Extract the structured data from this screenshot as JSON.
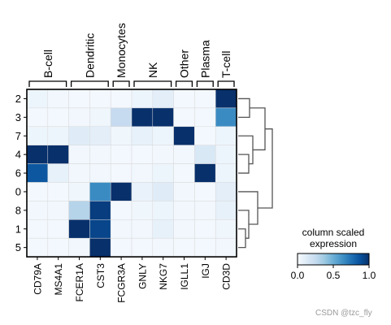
{
  "chart_data": {
    "type": "heatmap",
    "rows": [
      "2",
      "3",
      "7",
      "4",
      "6",
      "0",
      "8",
      "1",
      "5"
    ],
    "columns": [
      "CD79A",
      "MS4A1",
      "FCER1A",
      "CST3",
      "FCGR3A",
      "GNLY",
      "NKG7",
      "IGLL1",
      "IGJ",
      "CD3D"
    ],
    "values": [
      [
        0.05,
        0.03,
        0.02,
        0.02,
        0.02,
        0.05,
        0.1,
        0.02,
        0.02,
        1.0
      ],
      [
        0.02,
        0.02,
        0.03,
        0.04,
        0.25,
        1.0,
        1.0,
        0.02,
        0.02,
        0.65
      ],
      [
        0.05,
        0.05,
        0.12,
        0.1,
        0.04,
        0.08,
        0.05,
        1.0,
        0.02,
        0.05
      ],
      [
        1.0,
        1.0,
        0.03,
        0.03,
        0.02,
        0.02,
        0.03,
        0.03,
        0.15,
        0.05
      ],
      [
        0.85,
        0.08,
        0.03,
        0.03,
        0.02,
        0.03,
        0.05,
        0.02,
        1.0,
        0.05
      ],
      [
        0.02,
        0.02,
        0.04,
        0.65,
        1.0,
        0.07,
        0.12,
        0.03,
        0.02,
        0.1
      ],
      [
        0.03,
        0.03,
        0.3,
        0.95,
        0.02,
        0.04,
        0.05,
        0.03,
        0.03,
        0.08
      ],
      [
        0.02,
        0.02,
        1.0,
        0.92,
        0.03,
        0.03,
        0.08,
        0.03,
        0.02,
        0.04
      ],
      [
        0.02,
        0.02,
        0.03,
        1.0,
        0.02,
        0.02,
        0.03,
        0.02,
        0.02,
        0.03
      ]
    ],
    "groups": [
      {
        "label": "B-cell",
        "start": 0,
        "end": 1
      },
      {
        "label": "Dendritic",
        "start": 2,
        "end": 3
      },
      {
        "label": "Monocytes",
        "start": 4,
        "end": 4
      },
      {
        "label": "NK",
        "start": 5,
        "end": 6
      },
      {
        "label": "Other",
        "start": 7,
        "end": 7
      },
      {
        "label": "Plasma",
        "start": 8,
        "end": 8
      },
      {
        "label": "T-cell",
        "start": 9,
        "end": 9
      }
    ],
    "colorbar": {
      "title_lines": [
        "column scaled",
        "expression"
      ],
      "ticks": [
        "0.0",
        "0.5",
        "1.0"
      ],
      "range": [
        0,
        1
      ],
      "colormap": "Blues"
    },
    "dendrogram": "rows",
    "grid": true
  },
  "colors": {
    "cmap_low": "#f7fbff",
    "cmap_high": "#08306b",
    "dendrogram": "#555555"
  },
  "watermark": "CSDN @tzc_fly"
}
